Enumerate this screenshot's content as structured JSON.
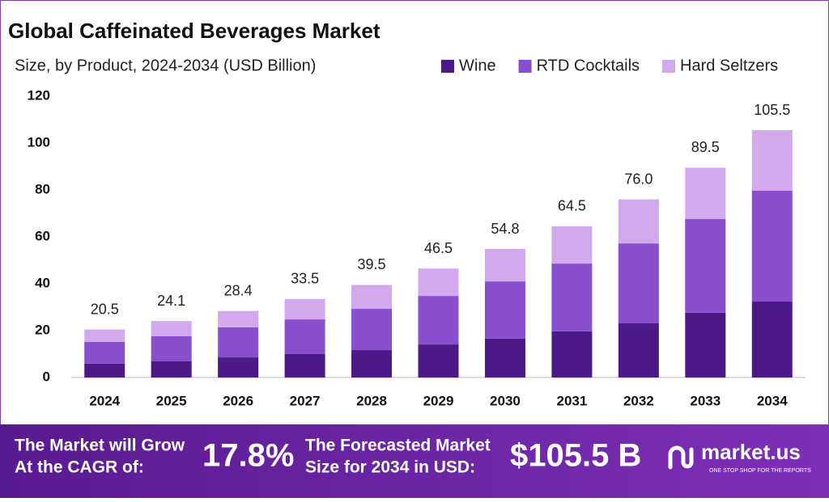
{
  "chart_data": {
    "type": "stacked_bar",
    "title": "Global Caffeinated Beverages Market",
    "subtitle": "Size, by Product, 2024-2034 (USD Billion)",
    "categories": [
      "2024",
      "2025",
      "2026",
      "2027",
      "2028",
      "2029",
      "2030",
      "2031",
      "2032",
      "2033",
      "2034"
    ],
    "series": [
      {
        "name": "Wine",
        "color": "#4b1a87",
        "values": [
          5.9,
          6.9,
          8.6,
          10.0,
          11.7,
          14.1,
          16.6,
          19.7,
          23.1,
          27.6,
          32.4
        ]
      },
      {
        "name": "RTD Cocktails",
        "color": "#8a4fcf",
        "values": [
          9.3,
          10.7,
          12.8,
          14.8,
          17.6,
          20.7,
          24.4,
          28.9,
          34.1,
          40.0,
          47.3
        ]
      },
      {
        "name": "Hard Seltzers",
        "color": "#d3a9ee",
        "values": [
          5.3,
          6.5,
          7.0,
          8.7,
          10.2,
          11.7,
          13.8,
          15.9,
          18.8,
          21.9,
          25.8
        ]
      }
    ],
    "totals": [
      20.5,
      24.1,
      28.4,
      33.5,
      39.5,
      46.5,
      54.8,
      64.5,
      76.0,
      89.5,
      105.5
    ],
    "total_labels": [
      "20.5",
      "24.1",
      "28.4",
      "33.5",
      "39.5",
      "46.5",
      "54.8",
      "64.5",
      "76.0",
      "89.5",
      "105.5"
    ],
    "ylim": [
      0,
      120
    ],
    "yticks": [
      0,
      20,
      40,
      60,
      80,
      100,
      120
    ],
    "grid": false,
    "legend": "top-right"
  },
  "footer": {
    "cagr_text_1": "The Market will Grow",
    "cagr_text_2": "At the CAGR of:",
    "cagr": "17.8%",
    "forecast_text_1": "The Forecasted Market",
    "forecast_text_2": "Size for 2034 in USD:",
    "forecast": "$105.5 B",
    "brand": "market.us",
    "tagline": "ONE STOP SHOP FOR THE REPORTS"
  }
}
